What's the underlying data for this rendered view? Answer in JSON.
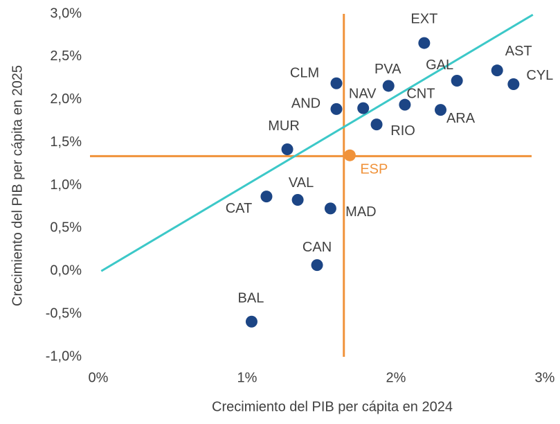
{
  "chart_data": {
    "type": "scatter",
    "xlabel": "Crecimiento del PIB per cápita en 2024",
    "ylabel": "Crecimiento del PIB per cápita en 2025",
    "labels": [
      "EXT",
      "AST",
      "CYL",
      "GAL",
      "PVA",
      "CLM",
      "CNT",
      "ARA",
      "AND",
      "NAV",
      "RIO",
      "MUR",
      "ESP",
      "CAT",
      "VAL",
      "MAD",
      "CAN",
      "BAL"
    ],
    "x": [
      2.19,
      2.68,
      2.79,
      2.41,
      1.95,
      1.6,
      2.06,
      2.3,
      1.6,
      1.78,
      1.87,
      1.27,
      1.69,
      1.13,
      1.34,
      1.56,
      1.47,
      1.03
    ],
    "y": [
      2.66,
      2.34,
      2.18,
      2.22,
      2.16,
      2.19,
      1.94,
      1.88,
      1.89,
      1.9,
      1.71,
      1.42,
      1.35,
      0.87,
      0.83,
      0.73,
      0.07,
      -0.59
    ],
    "colors": [
      "#1c4585",
      "#1c4585",
      "#1c4585",
      "#1c4585",
      "#1c4585",
      "#1c4585",
      "#1c4585",
      "#1c4585",
      "#1c4585",
      "#1c4585",
      "#1c4585",
      "#1c4585",
      "#f0923a",
      "#1c4585",
      "#1c4585",
      "#1c4585",
      "#1c4585",
      "#1c4585"
    ],
    "xlim": [
      0,
      3
    ],
    "ylim": [
      -1,
      3
    ],
    "xticks": [
      {
        "value": 0,
        "label": "0%"
      },
      {
        "value": 1,
        "label": "1%"
      },
      {
        "value": 2,
        "label": "2%"
      },
      {
        "value": 3,
        "label": "3%"
      }
    ],
    "yticks": [
      {
        "value": -1,
        "label": "-1,0%"
      },
      {
        "value": -0.5,
        "label": "-0,5%"
      },
      {
        "value": 0,
        "label": "0,0%"
      },
      {
        "value": 0.5,
        "label": "0,5%"
      },
      {
        "value": 1,
        "label": "1,0%"
      },
      {
        "value": 1.5,
        "label": "1,5%"
      },
      {
        "value": 2,
        "label": "2,0%"
      },
      {
        "value": 2.5,
        "label": "2,5%"
      },
      {
        "value": 3,
        "label": "3,0%"
      }
    ],
    "reference_lines": {
      "x": 1.65,
      "y": 1.34,
      "color": "#f0923a"
    },
    "trend_line": {
      "x": [
        0.02,
        2.92
      ],
      "y": [
        0,
        2.99
      ],
      "color": "#3cc8c8"
    }
  }
}
